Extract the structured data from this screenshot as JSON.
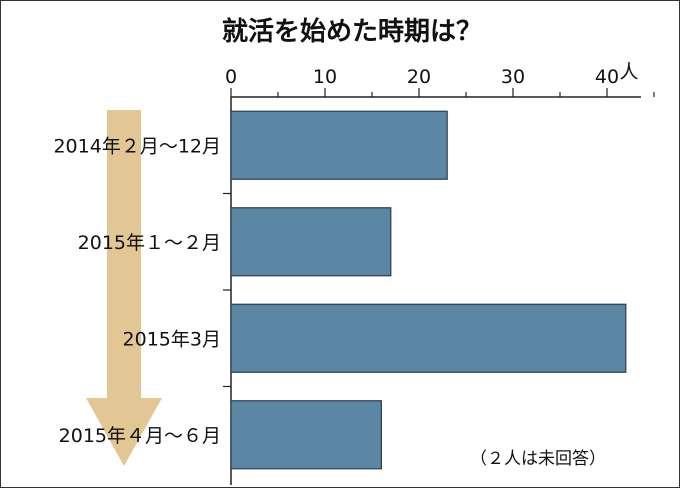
{
  "chart_data": {
    "type": "bar",
    "orientation": "horizontal",
    "title": "就活を始めた時期は？",
    "unit": "人",
    "categories": [
      "2014年２月～12月",
      "2015年１～２月",
      "2015年3月",
      "2015年４月～６月"
    ],
    "values": [
      23,
      17,
      42,
      16
    ],
    "xlim": [
      0,
      45
    ],
    "xticks": [
      0,
      10,
      20,
      30,
      40
    ],
    "note": "（２人は未回答）",
    "grid": false,
    "colors": {
      "bar": "#5b86a4",
      "bar_stroke": "#2b3f52",
      "arrow": "#e2c795"
    }
  }
}
